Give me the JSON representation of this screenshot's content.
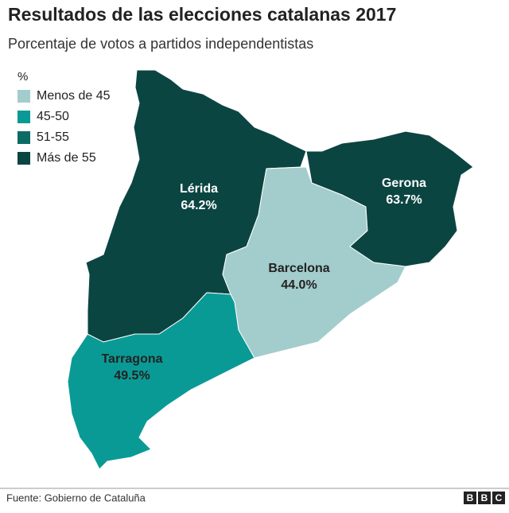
{
  "title": "Resultados de las elecciones catalanas 2017",
  "subtitle": "Porcentaje de votos a partidos independentistas",
  "legend": {
    "title": "%",
    "items": [
      {
        "label": "Menos de 45",
        "color": "#a3cdcc"
      },
      {
        "label": "45-50",
        "color": "#0a9a96"
      },
      {
        "label": "51-55",
        "color": "#0d6b66"
      },
      {
        "label": "Más de 55",
        "color": "#0b4542"
      }
    ]
  },
  "regions": [
    {
      "name": "Lérida",
      "value": "64.2%",
      "color": "#0b4542",
      "text_color": "#ffffff"
    },
    {
      "name": "Barcelona",
      "value": "44.0%",
      "color": "#a3cdcc",
      "text_color": "#222222"
    },
    {
      "name": "Gerona",
      "value": "63.7%",
      "color": "#0b4542",
      "text_color": "#ffffff"
    },
    {
      "name": "Tarragona",
      "value": "49.5%",
      "color": "#0a9a96",
      "text_color": "#222222"
    }
  ],
  "source": "Fuente: Gobierno de Cataluña",
  "logo": [
    "B",
    "B",
    "C"
  ]
}
